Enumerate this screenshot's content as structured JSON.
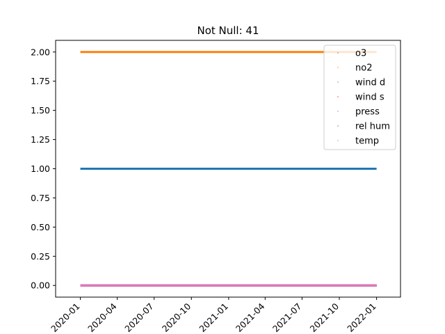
{
  "chart_data": {
    "type": "scatter",
    "title": "Not Null: 41",
    "xlabel": "",
    "ylabel": "",
    "x_ticks": [
      "2020-01",
      "2020-04",
      "2020-07",
      "2020-10",
      "2021-01",
      "2021-04",
      "2021-07",
      "2021-10",
      "2022-01"
    ],
    "x_range": [
      "2020-01-01",
      "2022-01-01"
    ],
    "xlim": [
      "2019-11-01",
      "2022-03-01"
    ],
    "y_ticks": [
      "0.00",
      "0.25",
      "0.50",
      "0.75",
      "1.00",
      "1.25",
      "1.50",
      "1.75",
      "2.00"
    ],
    "ylim": [
      -0.1,
      2.1
    ],
    "grid": false,
    "legend_position": "top-right",
    "series": [
      {
        "name": "o3",
        "value": 1,
        "color": "#1f77b4"
      },
      {
        "name": "no2",
        "value": 2,
        "color": "#ff7f0e"
      },
      {
        "name": "wind d",
        "value": 0,
        "color": "#2ca02c"
      },
      {
        "name": "wind s",
        "value": 0,
        "color": "#d62728"
      },
      {
        "name": "press",
        "value": 0,
        "color": "#9467bd"
      },
      {
        "name": "rel hum",
        "value": 0,
        "color": "#8c564b"
      },
      {
        "name": "temp",
        "value": 0,
        "color": "#e377c2"
      }
    ]
  }
}
